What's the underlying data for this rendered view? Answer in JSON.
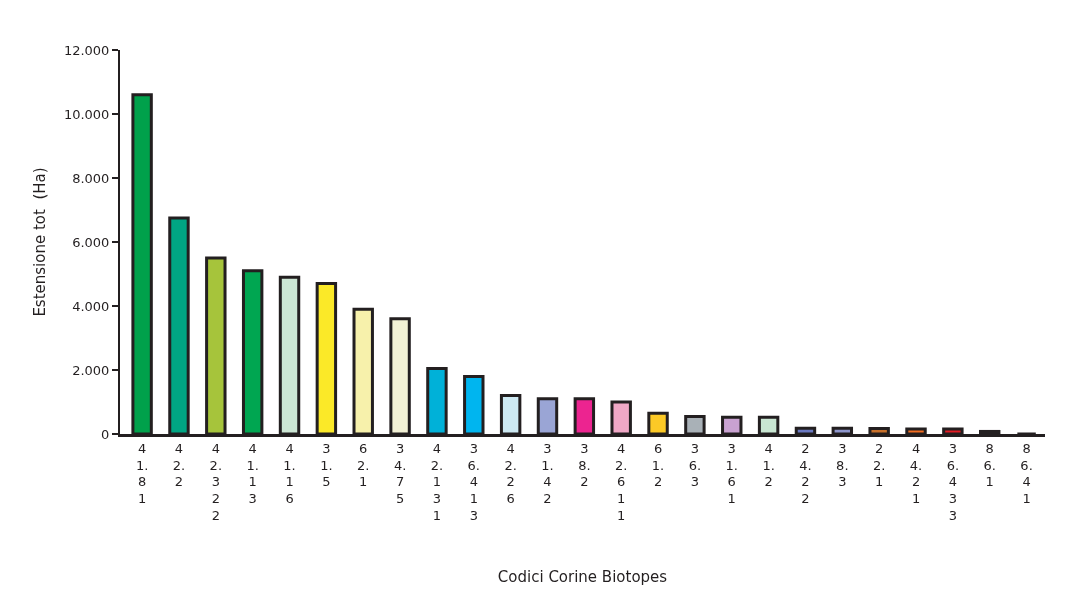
{
  "chart_data": {
    "type": "bar",
    "xlabel": "Codici Corine Biotopes",
    "ylabel": "Estensione tot  (Ha)",
    "categories": [
      "41.81",
      "42.2",
      "42.322",
      "41.13",
      "41.16",
      "31.5",
      "62.1",
      "34.75",
      "42.131",
      "36.413",
      "42.26",
      "31.42",
      "38.2",
      "42.611",
      "61.2",
      "36.3",
      "31.61",
      "41.2",
      "24.22",
      "38.3",
      "22.1",
      "44.21",
      "36.433",
      "86.1",
      "86.41"
    ],
    "values": [
      10600,
      6750,
      5500,
      5100,
      4900,
      4700,
      3900,
      3600,
      2050,
      1800,
      1200,
      1100,
      1100,
      1000,
      650,
      550,
      520,
      520,
      180,
      180,
      170,
      160,
      160,
      80,
      0
    ],
    "colors": [
      "#00a14b",
      "#00a583",
      "#a6c43b",
      "#00a651",
      "#cce6d4",
      "#fbe928",
      "#f7f1ab",
      "#f2f1d5",
      "#00b1d8",
      "#00b5ef",
      "#cde9f2",
      "#9aa5d5",
      "#ec2490",
      "#f0a8c6",
      "#fcc926",
      "#a9b1b7",
      "#c9a2d1",
      "#c9e6d2",
      "#6b79c1",
      "#8e96cc",
      "#c8702a",
      "#f26d21",
      "#e31c24",
      "#231f20",
      "#231f20"
    ],
    "ylim": [
      0,
      12000
    ],
    "yticks": [
      {
        "value": 0,
        "label": "0"
      },
      {
        "value": 2000,
        "label": "2.000"
      },
      {
        "value": 4000,
        "label": "4.000"
      },
      {
        "value": 6000,
        "label": "6.000"
      },
      {
        "value": 8000,
        "label": "8.000"
      },
      {
        "value": 10000,
        "label": "10.000"
      },
      {
        "value": 12000,
        "label": "12.000"
      }
    ],
    "orientation": "vertical"
  }
}
